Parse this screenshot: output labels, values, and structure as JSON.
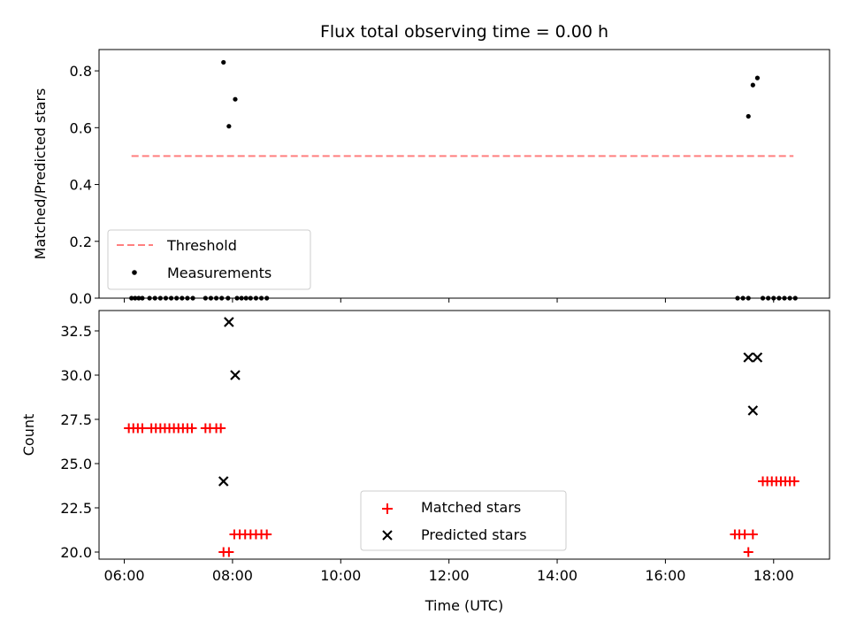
{
  "chart_data": [
    {
      "type": "scatter",
      "title": "Flux total observing time = 0.00 h",
      "xlabel": "",
      "ylabel": "Matched/Predicted stars",
      "ylim": [
        0.0,
        0.875
      ],
      "yticks": [
        "0.0",
        "0.2",
        "0.4",
        "0.6",
        "0.8"
      ],
      "ytick_values": [
        0.0,
        0.2,
        0.4,
        0.6,
        0.8
      ],
      "grid": false,
      "legend_position": "lower-left",
      "threshold": {
        "name": "Threshold",
        "value": 0.5,
        "x_start": "06:08",
        "x_end": "18:22",
        "color": "#ff7f7f"
      },
      "series": [
        {
          "name": "Measurements",
          "color": "#000000",
          "points": [
            {
              "x": "06:08",
              "y": 0.0
            },
            {
              "x": "06:12",
              "y": 0.0
            },
            {
              "x": "06:16",
              "y": 0.0
            },
            {
              "x": "06:20",
              "y": 0.0
            },
            {
              "x": "06:28",
              "y": 0.0
            },
            {
              "x": "06:34",
              "y": 0.0
            },
            {
              "x": "06:40",
              "y": 0.0
            },
            {
              "x": "06:46",
              "y": 0.0
            },
            {
              "x": "06:52",
              "y": 0.0
            },
            {
              "x": "06:58",
              "y": 0.0
            },
            {
              "x": "07:04",
              "y": 0.0
            },
            {
              "x": "07:10",
              "y": 0.0
            },
            {
              "x": "07:16",
              "y": 0.0
            },
            {
              "x": "07:30",
              "y": 0.0
            },
            {
              "x": "07:36",
              "y": 0.0
            },
            {
              "x": "07:42",
              "y": 0.0
            },
            {
              "x": "07:48",
              "y": 0.0
            },
            {
              "x": "07:50",
              "y": 0.83
            },
            {
              "x": "07:55",
              "y": 0.0
            },
            {
              "x": "07:56",
              "y": 0.605
            },
            {
              "x": "08:03",
              "y": 0.7
            },
            {
              "x": "08:05",
              "y": 0.0
            },
            {
              "x": "08:10",
              "y": 0.0
            },
            {
              "x": "08:15",
              "y": 0.0
            },
            {
              "x": "08:20",
              "y": 0.0
            },
            {
              "x": "08:26",
              "y": 0.0
            },
            {
              "x": "08:32",
              "y": 0.0
            },
            {
              "x": "08:38",
              "y": 0.0
            },
            {
              "x": "17:20",
              "y": 0.0
            },
            {
              "x": "17:26",
              "y": 0.0
            },
            {
              "x": "17:32",
              "y": 0.0
            },
            {
              "x": "17:32",
              "y": 0.64
            },
            {
              "x": "17:37",
              "y": 0.75
            },
            {
              "x": "17:42",
              "y": 0.775
            },
            {
              "x": "17:48",
              "y": 0.0
            },
            {
              "x": "17:54",
              "y": 0.0
            },
            {
              "x": "18:00",
              "y": 0.0
            },
            {
              "x": "18:06",
              "y": 0.0
            },
            {
              "x": "18:12",
              "y": 0.0
            },
            {
              "x": "18:18",
              "y": 0.0
            },
            {
              "x": "18:24",
              "y": 0.0
            }
          ]
        }
      ]
    },
    {
      "type": "scatter",
      "title": "",
      "xlabel": "Time (UTC)",
      "ylabel": "Count",
      "xlim": [
        "05:32",
        "19:02"
      ],
      "xticks": [
        "06:00",
        "08:00",
        "10:00",
        "12:00",
        "14:00",
        "16:00",
        "18:00"
      ],
      "ylim": [
        19.6,
        33.65
      ],
      "yticks": [
        "20.0",
        "22.5",
        "25.0",
        "27.5",
        "30.0",
        "32.5"
      ],
      "ytick_values": [
        20.0,
        22.5,
        25.0,
        27.5,
        30.0,
        32.5
      ],
      "grid": false,
      "legend_position": "lower-center",
      "series": [
        {
          "name": "Matched stars",
          "marker": "plus",
          "color": "#ff0000",
          "points": [
            {
              "x": "06:05",
              "y": 27
            },
            {
              "x": "06:10",
              "y": 27
            },
            {
              "x": "06:15",
              "y": 27
            },
            {
              "x": "06:20",
              "y": 27
            },
            {
              "x": "06:30",
              "y": 27
            },
            {
              "x": "06:35",
              "y": 27
            },
            {
              "x": "06:40",
              "y": 27
            },
            {
              "x": "06:45",
              "y": 27
            },
            {
              "x": "06:50",
              "y": 27
            },
            {
              "x": "06:55",
              "y": 27
            },
            {
              "x": "07:00",
              "y": 27
            },
            {
              "x": "07:05",
              "y": 27
            },
            {
              "x": "07:10",
              "y": 27
            },
            {
              "x": "07:15",
              "y": 27
            },
            {
              "x": "07:30",
              "y": 27
            },
            {
              "x": "07:35",
              "y": 27
            },
            {
              "x": "07:42",
              "y": 27
            },
            {
              "x": "07:47",
              "y": 27
            },
            {
              "x": "07:50",
              "y": 20
            },
            {
              "x": "07:56",
              "y": 20
            },
            {
              "x": "08:02",
              "y": 21
            },
            {
              "x": "08:08",
              "y": 21
            },
            {
              "x": "08:14",
              "y": 21
            },
            {
              "x": "08:20",
              "y": 21
            },
            {
              "x": "08:26",
              "y": 21
            },
            {
              "x": "08:32",
              "y": 21
            },
            {
              "x": "08:38",
              "y": 21
            },
            {
              "x": "17:17",
              "y": 21
            },
            {
              "x": "17:22",
              "y": 21
            },
            {
              "x": "17:28",
              "y": 21
            },
            {
              "x": "17:32",
              "y": 20
            },
            {
              "x": "17:37",
              "y": 21
            },
            {
              "x": "17:48",
              "y": 24
            },
            {
              "x": "17:53",
              "y": 24
            },
            {
              "x": "17:58",
              "y": 24
            },
            {
              "x": "18:03",
              "y": 24
            },
            {
              "x": "18:08",
              "y": 24
            },
            {
              "x": "18:13",
              "y": 24
            },
            {
              "x": "18:18",
              "y": 24
            },
            {
              "x": "18:23",
              "y": 24
            }
          ]
        },
        {
          "name": "Predicted stars",
          "marker": "x",
          "color": "#000000",
          "points": [
            {
              "x": "07:50",
              "y": 24
            },
            {
              "x": "07:56",
              "y": 33
            },
            {
              "x": "08:03",
              "y": 30
            },
            {
              "x": "17:32",
              "y": 31
            },
            {
              "x": "17:37",
              "y": 28
            },
            {
              "x": "17:42",
              "y": 31
            }
          ]
        }
      ]
    }
  ]
}
